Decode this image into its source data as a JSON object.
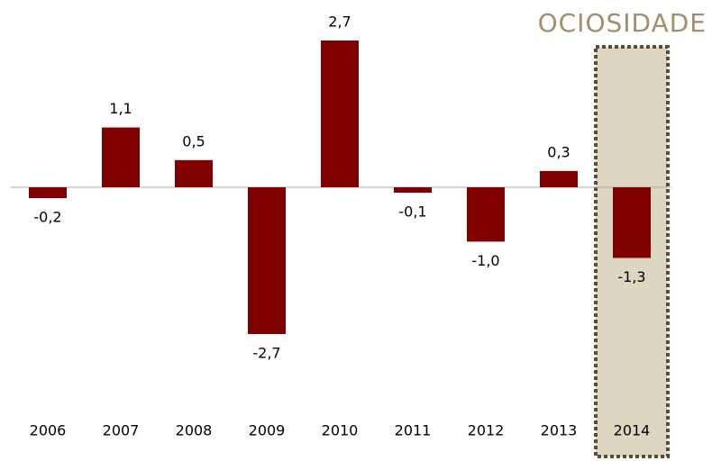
{
  "chart_data": {
    "type": "bar",
    "title": "OCIOSIDADE",
    "categories": [
      "2006",
      "2007",
      "2008",
      "2009",
      "2010",
      "2011",
      "2012",
      "2013",
      "2014"
    ],
    "values": [
      -0.2,
      1.1,
      0.5,
      -2.7,
      2.7,
      -0.1,
      -1.0,
      0.3,
      -1.3
    ],
    "value_labels": [
      "-0,2",
      "1,1",
      "0,5",
      "-2,7",
      "2,7",
      "-0,1",
      "-1,0",
      "0,3",
      "-1,3"
    ],
    "color": "#800000",
    "highlight_index": 8,
    "highlight_color": "#ddd6c1"
  }
}
